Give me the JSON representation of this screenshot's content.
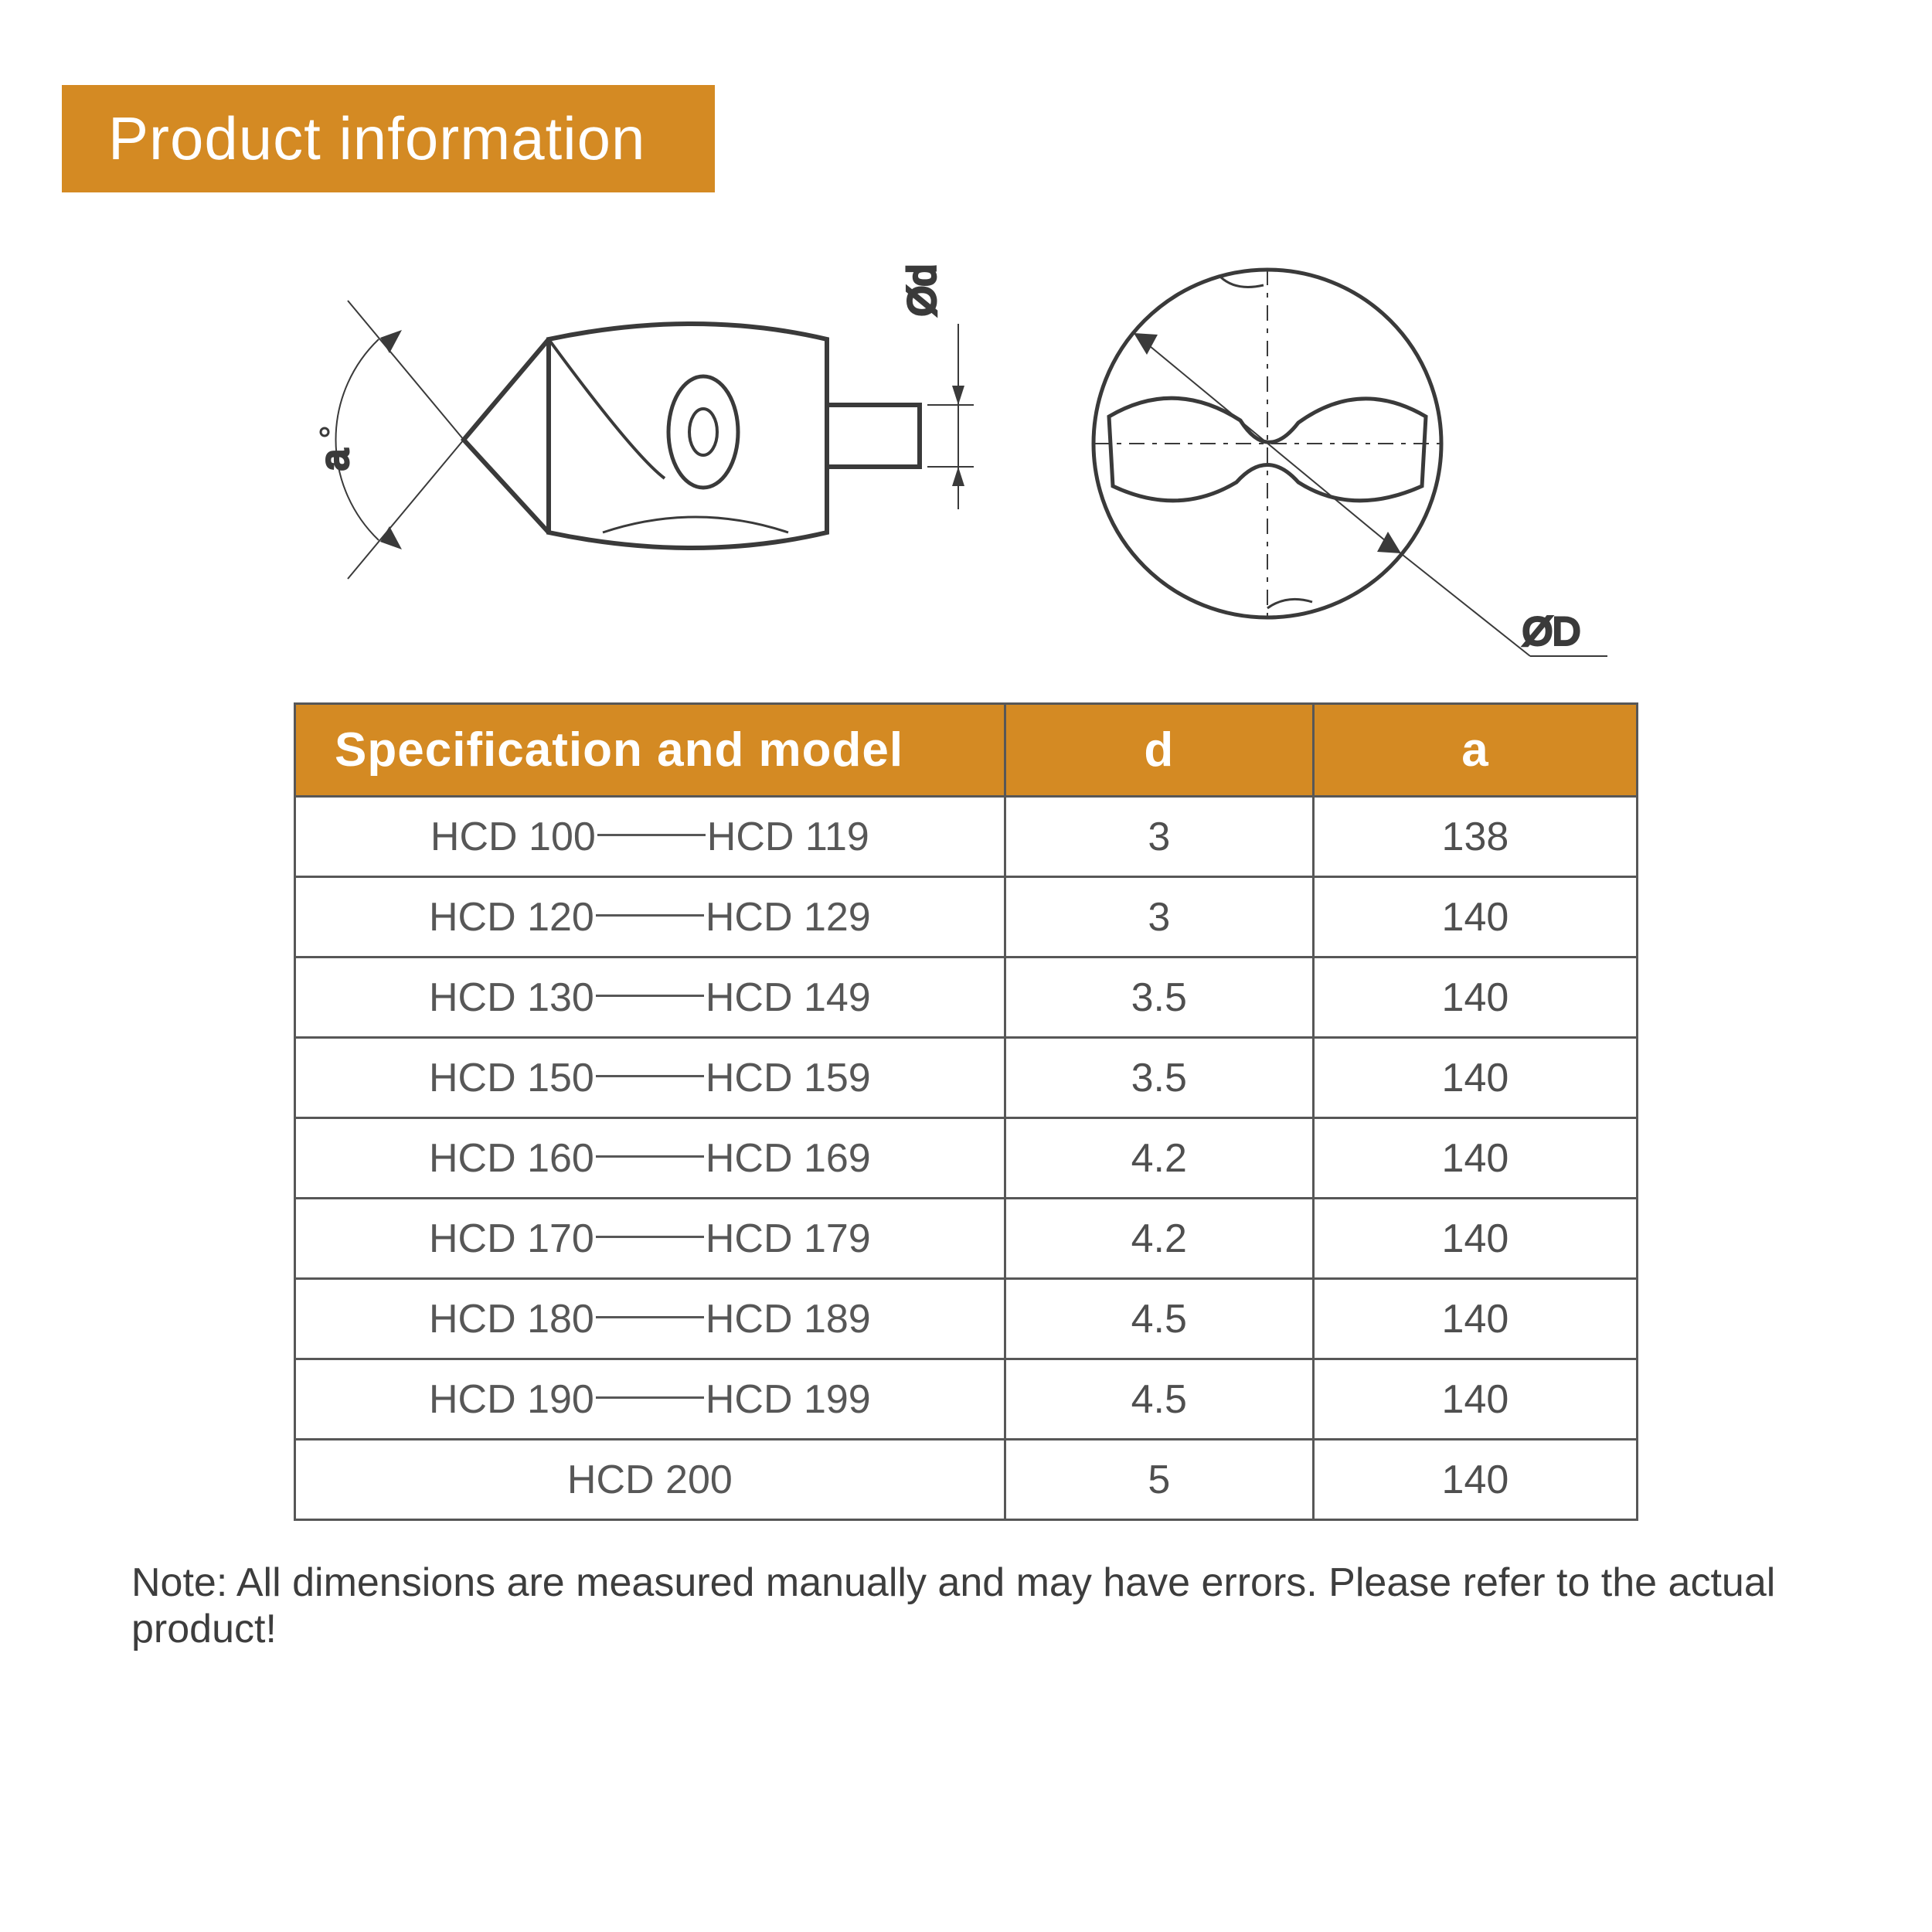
{
  "colors": {
    "accent": "#d48a23",
    "header_bg": "#d48a23",
    "table_border": "#575757",
    "text_body": "#4f4f4f",
    "text_note": "#3d3d3d",
    "diagram_stroke": "#3a3a3a",
    "background": "#ffffff"
  },
  "title": "Product information",
  "diagram": {
    "label_angle": "a",
    "label_shaft_dia": "Ød",
    "label_outer_dia": "ØD"
  },
  "table": {
    "columns": {
      "spec": "Specification and model",
      "d": "d",
      "a": "a"
    },
    "rows": [
      {
        "from": "HCD 100",
        "to": "HCD 119",
        "d": "3",
        "a": "138"
      },
      {
        "from": "HCD 120",
        "to": "HCD 129",
        "d": "3",
        "a": "140"
      },
      {
        "from": "HCD 130",
        "to": "HCD 149",
        "d": "3.5",
        "a": "140"
      },
      {
        "from": "HCD 150",
        "to": "HCD 159",
        "d": "3.5",
        "a": "140"
      },
      {
        "from": "HCD 160",
        "to": "HCD 169",
        "d": "4.2",
        "a": "140"
      },
      {
        "from": "HCD 170",
        "to": "HCD 179",
        "d": "4.2",
        "a": "140"
      },
      {
        "from": "HCD 180",
        "to": "HCD 189",
        "d": "4.5",
        "a": "140"
      },
      {
        "from": "HCD 190",
        "to": "HCD 199",
        "d": "4.5",
        "a": "140"
      },
      {
        "from": "HCD 200",
        "to": null,
        "d": "5",
        "a": "140"
      }
    ]
  },
  "note": "Note: All dimensions are measured manually and may have errors. Please refer to the actual product!"
}
